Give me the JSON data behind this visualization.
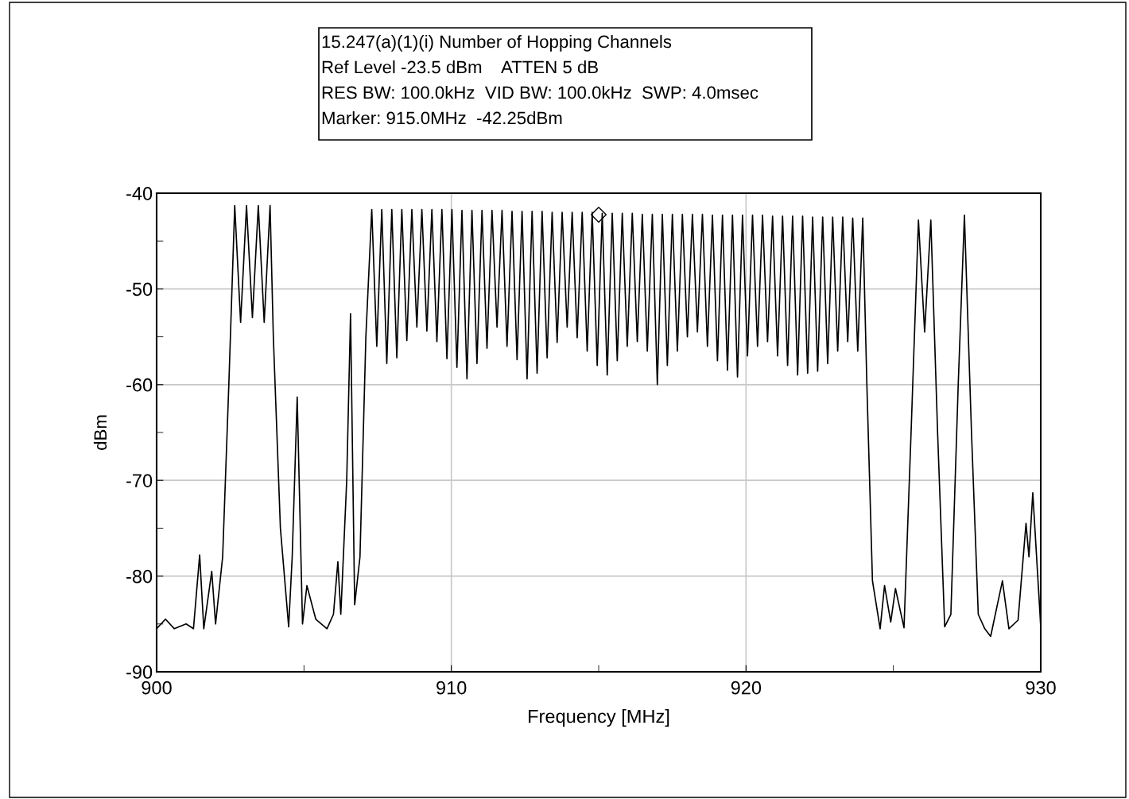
{
  "chart_data": {
    "type": "line",
    "title": "15.247(a)(1)(i) Number of Hopping Channels",
    "annotations": [
      "Ref Level -23.5 dBm    ATTEN 5 dB",
      "RES BW: 100.0kHz  VID BW: 100.0kHz  SWP: 4.0msec",
      "Marker: 915.0MHz  -42.25dBm"
    ],
    "xlabel": "Frequency [MHz]",
    "ylabel": "dBm",
    "xlim": [
      900,
      930
    ],
    "ylim": [
      -90,
      -40
    ],
    "xticks": [
      900,
      {
        "value": 905,
        "label": null
      },
      910,
      {
        "value": 915,
        "label": null
      },
      920,
      {
        "value": 925,
        "label": null
      },
      930
    ],
    "yticks": [
      -90,
      {
        "value": -85,
        "label": null
      },
      -80,
      {
        "value": -75,
        "label": null
      },
      -70,
      {
        "value": -65,
        "label": null
      },
      -60,
      {
        "value": -55,
        "label": null
      },
      -50,
      {
        "value": -45,
        "label": null
      },
      -40
    ],
    "grid": true,
    "series": [
      {
        "color": "#000000",
        "marker": "none",
        "x": [
          900.0,
          900.3,
          900.6,
          901.0,
          901.25,
          901.46,
          901.6,
          901.87,
          902.0,
          902.24,
          902.45,
          902.65,
          902.85,
          903.05,
          903.25,
          903.45,
          903.65,
          903.85,
          903.96,
          904.2,
          904.48,
          904.6,
          904.77,
          904.95,
          905.1,
          905.4,
          905.78,
          906.0,
          906.15,
          906.25,
          906.45,
          906.58,
          906.72,
          906.9,
          907.1,
          907.3,
          907.47,
          907.64,
          907.81,
          907.98,
          908.15,
          908.32,
          908.49,
          908.66,
          908.83,
          909.0,
          909.17,
          909.34,
          909.51,
          909.68,
          909.85,
          910.02,
          910.19,
          910.36,
          910.53,
          910.7,
          910.87,
          911.04,
          911.21,
          911.38,
          911.55,
          911.72,
          911.89,
          912.06,
          912.23,
          912.4,
          912.57,
          912.74,
          912.91,
          913.08,
          913.25,
          913.42,
          913.59,
          913.76,
          913.93,
          914.1,
          914.27,
          914.44,
          914.61,
          914.78,
          914.95,
          915.12,
          915.29,
          915.46,
          915.63,
          915.8,
          915.97,
          916.14,
          916.31,
          916.48,
          916.65,
          916.82,
          916.99,
          917.16,
          917.33,
          917.5,
          917.67,
          917.84,
          918.01,
          918.18,
          918.35,
          918.52,
          918.69,
          918.86,
          919.03,
          919.2,
          919.37,
          919.54,
          919.71,
          919.88,
          920.05,
          920.22,
          920.39,
          920.56,
          920.73,
          920.9,
          921.07,
          921.24,
          921.41,
          921.58,
          921.75,
          921.92,
          922.09,
          922.26,
          922.43,
          922.6,
          922.77,
          922.94,
          923.11,
          923.28,
          923.45,
          923.62,
          923.79,
          923.96,
          924.1,
          924.29,
          924.55,
          924.7,
          924.91,
          925.07,
          925.36,
          925.6,
          925.85,
          926.06,
          926.27,
          926.5,
          926.74,
          926.95,
          927.2,
          927.41,
          927.65,
          927.88,
          928.1,
          928.3,
          928.7,
          928.92,
          929.23,
          929.5,
          929.6,
          929.73,
          930.0
        ],
        "values": [
          -85.5,
          -84.5,
          -85.5,
          -85.0,
          -85.5,
          -77.8,
          -85.5,
          -79.5,
          -85.0,
          -78.0,
          -60.0,
          -41.3,
          -53.5,
          -41.3,
          -53.0,
          -41.3,
          -53.5,
          -41.3,
          -55.0,
          -75.0,
          -85.3,
          -78.0,
          -61.3,
          -85.0,
          -81.0,
          -84.5,
          -85.5,
          -84.0,
          -78.5,
          -84.0,
          -70.0,
          -52.6,
          -83.0,
          -78.0,
          -55.0,
          -41.7,
          -56.0,
          -41.7,
          -57.8,
          -41.7,
          -57.2,
          -41.7,
          -55.4,
          -41.7,
          -54.0,
          -41.7,
          -54.4,
          -41.7,
          -55.5,
          -41.7,
          -57.3,
          -41.7,
          -58.2,
          -41.8,
          -59.4,
          -41.8,
          -57.8,
          -41.8,
          -56.2,
          -41.8,
          -54.0,
          -41.8,
          -56.0,
          -41.9,
          -57.4,
          -41.9,
          -59.4,
          -41.9,
          -58.8,
          -41.9,
          -57.2,
          -42.0,
          -55.6,
          -42.0,
          -54.0,
          -42.0,
          -55.1,
          -42.0,
          -56.5,
          -42.0,
          -58.0,
          -42.1,
          -59.0,
          -42.1,
          -57.5,
          -42.1,
          -56.0,
          -42.1,
          -55.5,
          -42.2,
          -56.5,
          -42.2,
          -60.0,
          -42.2,
          -58.0,
          -42.2,
          -56.5,
          -42.2,
          -55.0,
          -42.2,
          -54.5,
          -42.2,
          -56.0,
          -42.3,
          -57.5,
          -42.3,
          -58.5,
          -42.3,
          -59.2,
          -42.3,
          -57.0,
          -42.3,
          -56.0,
          -42.3,
          -55.5,
          -42.4,
          -57.0,
          -42.4,
          -58.0,
          -42.4,
          -59.0,
          -42.4,
          -58.8,
          -42.5,
          -58.6,
          -42.5,
          -57.8,
          -42.5,
          -56.5,
          -42.5,
          -55.5,
          -42.6,
          -56.5,
          -42.6,
          -60.0,
          -80.5,
          -85.5,
          -81.0,
          -84.8,
          -81.3,
          -85.4,
          -65.0,
          -42.8,
          -54.5,
          -42.8,
          -65.0,
          -85.3,
          -84.0,
          -60.0,
          -42.3,
          -65.0,
          -84.0,
          -85.5,
          -86.3,
          -80.5,
          -85.5,
          -84.6,
          -74.5,
          -78.0,
          -71.3,
          -85.3
        ]
      },
      {
        "type": "scatter",
        "color": "#000000",
        "marker": "diamond",
        "x": [
          915.0
        ],
        "values": [
          -42.25
        ]
      }
    ]
  }
}
